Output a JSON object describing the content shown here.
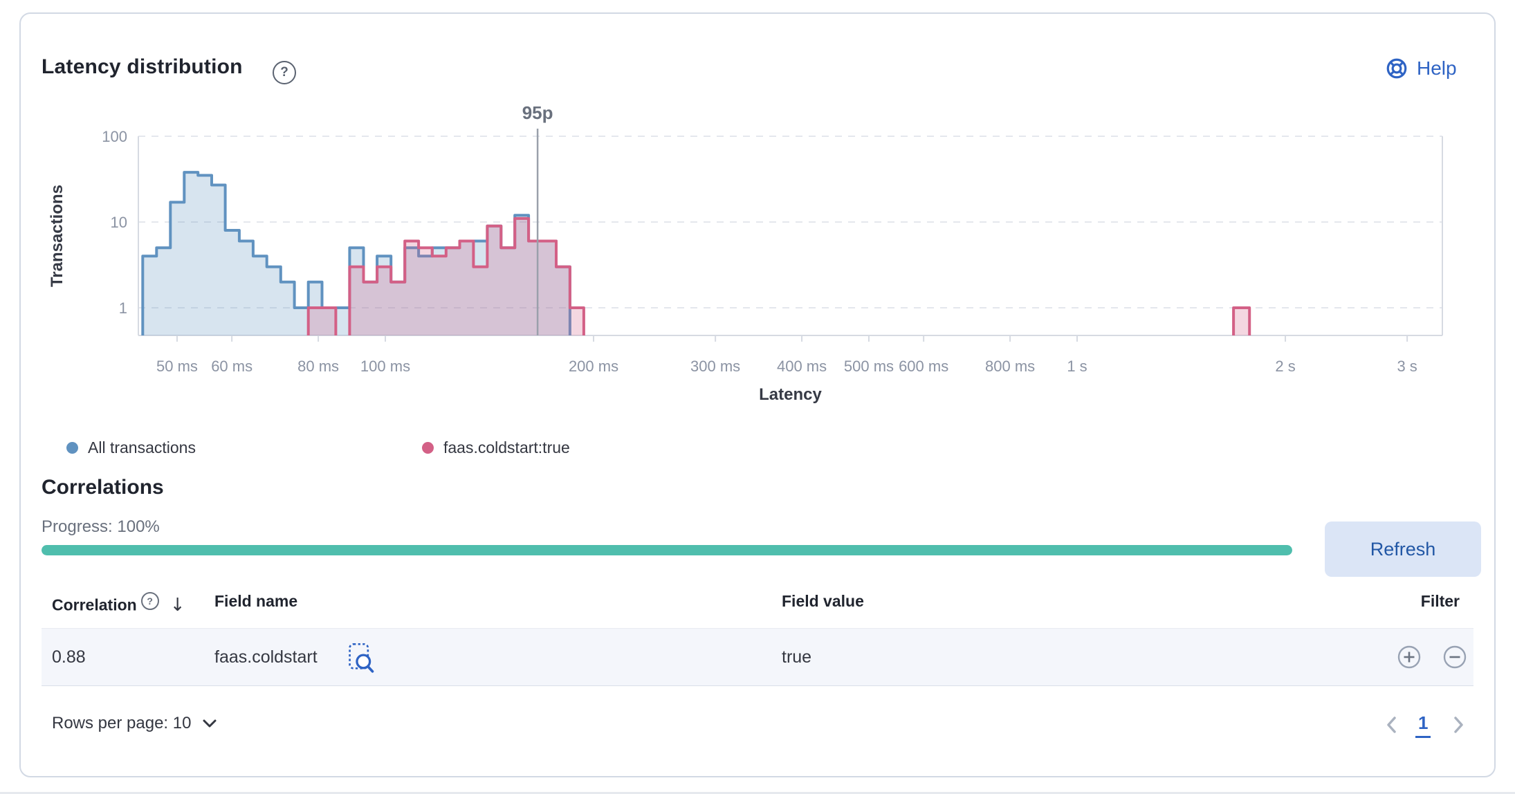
{
  "header": {
    "title": "Latency distribution",
    "help_label": "Help"
  },
  "icons": {
    "help_circle_glyph": "?",
    "sort_desc_glyph": "↓"
  },
  "chart_data": {
    "type": "area",
    "subtype": "step-histogram",
    "title": "Latency distribution",
    "xlabel": "Latency",
    "ylabel": "Transactions",
    "x_scale": "log",
    "y_scale": "log",
    "x_ticks": [
      {
        "label": "50 ms",
        "ms": 50
      },
      {
        "label": "60 ms",
        "ms": 60
      },
      {
        "label": "80 ms",
        "ms": 80
      },
      {
        "label": "100 ms",
        "ms": 100
      },
      {
        "label": "200 ms",
        "ms": 200
      },
      {
        "label": "300 ms",
        "ms": 300
      },
      {
        "label": "400 ms",
        "ms": 400
      },
      {
        "label": "500 ms",
        "ms": 500
      },
      {
        "label": "600 ms",
        "ms": 600
      },
      {
        "label": "800 ms",
        "ms": 800
      },
      {
        "label": "1 s",
        "ms": 1000
      },
      {
        "label": "2 s",
        "ms": 2000
      },
      {
        "label": "3 s",
        "ms": 3000
      }
    ],
    "y_ticks": [
      100,
      10,
      1
    ],
    "x_range_ms": [
      44,
      3388
    ],
    "bucket_edges_ms": [
      44.6,
      46.7,
      48.9,
      51.2,
      53.6,
      56.1,
      58.7,
      61.5,
      64.4,
      67.4,
      70.6,
      73.9,
      77.4,
      81.0,
      84.8,
      88.8,
      93.0,
      97.3,
      101.9,
      106.7,
      111.7,
      116.9,
      122.4,
      128.1,
      134.1,
      140.4,
      147.0,
      153.9,
      161.1,
      168.7,
      176.6,
      184.9,
      193.6
    ],
    "series": [
      {
        "name": "All transactions",
        "color": "#6092C0",
        "fill_opacity": 0.25,
        "counts": [
          4,
          5,
          17,
          38,
          35,
          27,
          8,
          6,
          4,
          3,
          2,
          1,
          2,
          1,
          1,
          5,
          2,
          4,
          2,
          5,
          4,
          5,
          5,
          6,
          6,
          9,
          5,
          12,
          6,
          6,
          3,
          0
        ],
        "extra_buckets": []
      },
      {
        "name": "faas.coldstart:true",
        "color": "#D36086",
        "fill_opacity": 0.25,
        "counts": [
          0,
          0,
          0,
          0,
          0,
          0,
          0,
          0,
          0,
          0,
          0,
          0,
          1,
          1,
          0,
          3,
          2,
          3,
          2,
          6,
          5,
          4,
          5,
          6,
          3,
          9,
          5,
          11,
          6,
          6,
          3,
          1
        ],
        "extra_buckets": [
          {
            "start_ms": 1683,
            "end_ms": 1775,
            "count": 1
          }
        ]
      }
    ],
    "annotation": {
      "label": "95p",
      "ms": 166
    },
    "legend_position": "bottom",
    "grid": "dashed-horizontal"
  },
  "correlations": {
    "heading": "Correlations",
    "progress_label": "Progress: 100%",
    "progress_percent": 100,
    "progress_color": "#4fbead",
    "refresh_label": "Refresh"
  },
  "table": {
    "columns": [
      "Correlation",
      "Field name",
      "Field value",
      "Filter"
    ],
    "rows": [
      {
        "correlation": "0.88",
        "field_name": "faas.coldstart",
        "field_value": "true"
      }
    ]
  },
  "pagination": {
    "rows_per_page_label": "Rows per page: 10",
    "current_page": "1"
  }
}
